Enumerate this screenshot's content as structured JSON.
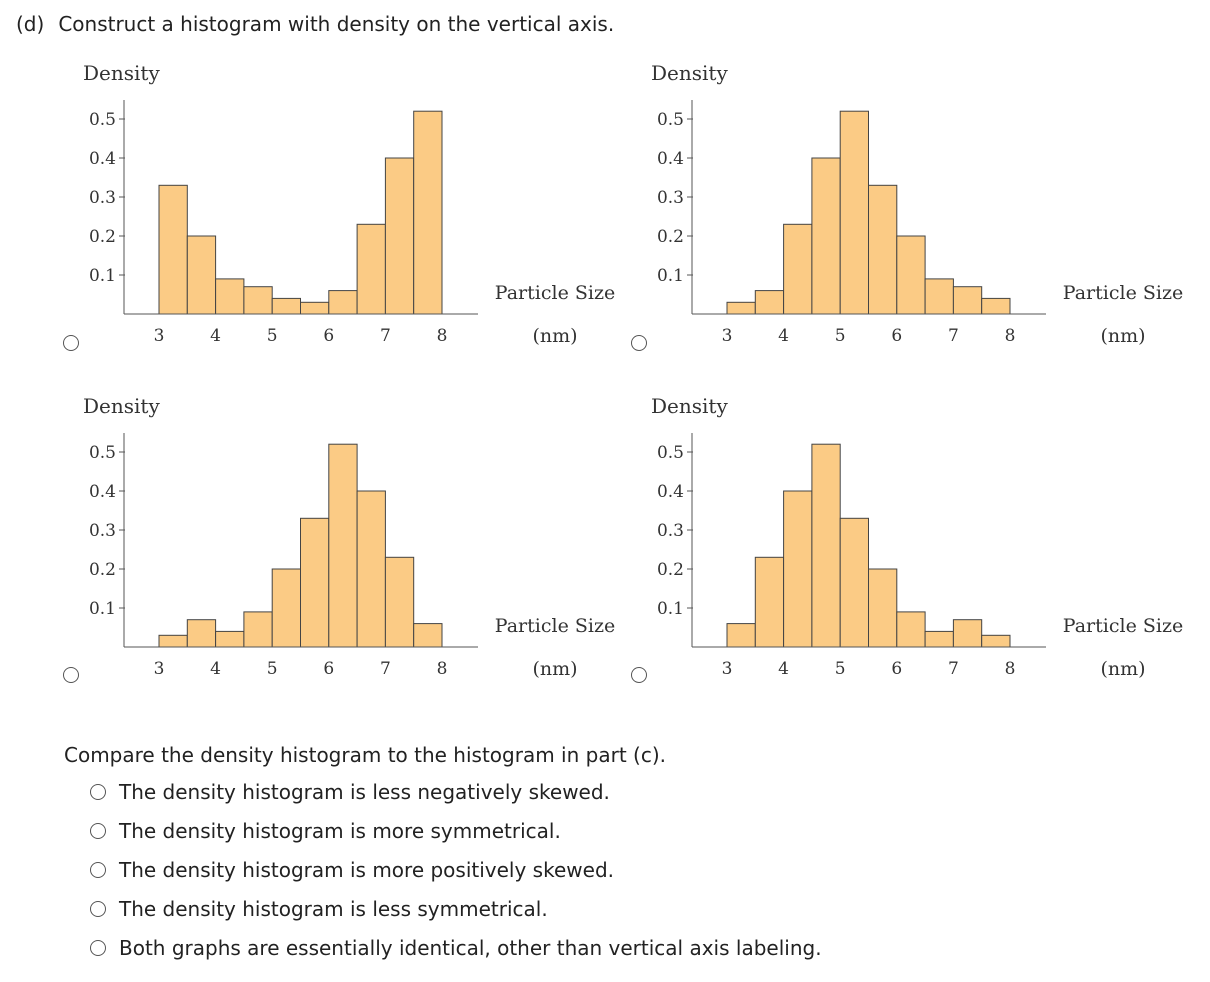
{
  "question": {
    "part": "(d)",
    "prompt": "Construct a histogram with density on the vertical axis."
  },
  "chart_data": [
    {
      "type": "bar",
      "ylabel": "Density",
      "xlabel": [
        "Particle Size",
        "(nm)"
      ],
      "x_ticks": [
        3,
        4,
        5,
        6,
        7,
        8
      ],
      "y_ticks": [
        "0.1",
        "0.2",
        "0.3",
        "0.4",
        "0.5"
      ],
      "bin_width": 0.5,
      "bin_starts": [
        3.0,
        3.5,
        4.0,
        4.5,
        5.0,
        5.5,
        6.0,
        6.5,
        7.0,
        7.5
      ],
      "values": [
        0.33,
        0.2,
        0.09,
        0.07,
        0.04,
        0.03,
        0.06,
        0.23,
        0.4,
        0.52
      ],
      "ylim": [
        0,
        0.55
      ]
    },
    {
      "type": "bar",
      "ylabel": "Density",
      "xlabel": [
        "Particle Size",
        "(nm)"
      ],
      "x_ticks": [
        3,
        4,
        5,
        6,
        7,
        8
      ],
      "y_ticks": [
        "0.1",
        "0.2",
        "0.3",
        "0.4",
        "0.5"
      ],
      "bin_width": 0.5,
      "bin_starts": [
        3.0,
        3.5,
        4.0,
        4.5,
        5.0,
        5.5,
        6.0,
        6.5,
        7.0,
        7.5
      ],
      "values": [
        0.03,
        0.06,
        0.23,
        0.4,
        0.52,
        0.33,
        0.2,
        0.09,
        0.07,
        0.04
      ],
      "ylim": [
        0,
        0.55
      ]
    },
    {
      "type": "bar",
      "ylabel": "Density",
      "xlabel": [
        "Particle Size",
        "(nm)"
      ],
      "x_ticks": [
        3,
        4,
        5,
        6,
        7,
        8
      ],
      "y_ticks": [
        "0.1",
        "0.2",
        "0.3",
        "0.4",
        "0.5"
      ],
      "bin_width": 0.5,
      "bin_starts": [
        3.0,
        3.5,
        4.0,
        4.5,
        5.0,
        5.5,
        6.0,
        6.5,
        7.0,
        7.5
      ],
      "values": [
        0.03,
        0.07,
        0.04,
        0.09,
        0.2,
        0.33,
        0.52,
        0.4,
        0.23,
        0.06
      ],
      "ylim": [
        0,
        0.55
      ]
    },
    {
      "type": "bar",
      "ylabel": "Density",
      "xlabel": [
        "Particle Size",
        "(nm)"
      ],
      "x_ticks": [
        3,
        4,
        5,
        6,
        7,
        8
      ],
      "y_ticks": [
        "0.1",
        "0.2",
        "0.3",
        "0.4",
        "0.5"
      ],
      "bin_width": 0.5,
      "bin_starts": [
        3.0,
        3.5,
        4.0,
        4.5,
        5.0,
        5.5,
        6.0,
        6.5,
        7.0,
        7.5
      ],
      "values": [
        0.06,
        0.23,
        0.4,
        0.52,
        0.33,
        0.2,
        0.09,
        0.04,
        0.07,
        0.03
      ],
      "ylim": [
        0,
        0.55
      ]
    }
  ],
  "colors": {
    "bar_fill": "#fbcb85",
    "bar_stroke": "#444444",
    "axis": "#555555"
  },
  "compare": {
    "prompt": "Compare the density histogram to the histogram in part (c).",
    "options": [
      "The density histogram is less negatively skewed.",
      "The density histogram is more symmetrical.",
      "The density histogram is more positively skewed.",
      "The density histogram is less symmetrical.",
      "Both graphs are essentially identical, other than vertical axis labeling."
    ]
  }
}
